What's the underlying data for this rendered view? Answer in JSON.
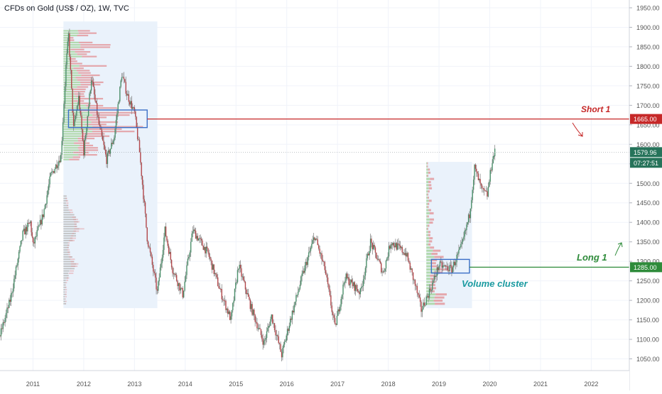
{
  "header": {
    "symbol_title": "CFDs on Gold (US$ / OZ), 1W, TVC"
  },
  "colors": {
    "up": "#4a8f6a",
    "down": "#b3474b",
    "wick": "#8a8a8a",
    "short_line": "#c62828",
    "long_line": "#2e8b3a",
    "price_badge": "#26735a",
    "box_blue": "#3b6fc7",
    "cluster_text": "#1a9aa0",
    "vp_up": "#a8d5a0",
    "vp_down": "#e39a9e",
    "range_bg": "#eaf2fb",
    "gray_vp": "#bdbdbd"
  },
  "annotations": {
    "short_label": "Short 1",
    "long_label": "Long 1",
    "cluster_label": "Volume cluster",
    "short_price": "1665.00",
    "long_price": "1285.00",
    "last_price": "1579.96",
    "countdown": "07:27:51"
  },
  "chart_data": {
    "type": "candlestick",
    "title": "CFDs on Gold (US$ / OZ), 1W, TVC",
    "y_ticks": [
      "1950.00",
      "1900.00",
      "1850.00",
      "1800.00",
      "1750.00",
      "1700.00",
      "1650.00",
      "1600.00",
      "1550.00",
      "1500.00",
      "1450.00",
      "1400.00",
      "1350.00",
      "1300.00",
      "1250.00",
      "1200.00",
      "1150.00",
      "1100.00",
      "1050.00"
    ],
    "x_ticks": [
      "2011",
      "2012",
      "2013",
      "2014",
      "2015",
      "2016",
      "2017",
      "2018",
      "2019",
      "2020",
      "2021",
      "2022"
    ],
    "ylim": [
      1020,
      1970
    ],
    "xlim": [
      2010.35,
      2022.75
    ],
    "price_path": [
      [
        2010.35,
        1110
      ],
      [
        2010.55,
        1200
      ],
      [
        2010.8,
        1370
      ],
      [
        2010.95,
        1400
      ],
      [
        2011.0,
        1340
      ],
      [
        2011.2,
        1420
      ],
      [
        2011.35,
        1520
      ],
      [
        2011.55,
        1570
      ],
      [
        2011.65,
        1800
      ],
      [
        2011.7,
        1880
      ],
      [
        2011.8,
        1640
      ],
      [
        2011.9,
        1720
      ],
      [
        2012.0,
        1580
      ],
      [
        2012.15,
        1770
      ],
      [
        2012.3,
        1650
      ],
      [
        2012.45,
        1560
      ],
      [
        2012.6,
        1620
      ],
      [
        2012.75,
        1780
      ],
      [
        2012.85,
        1730
      ],
      [
        2013.0,
        1680
      ],
      [
        2013.1,
        1580
      ],
      [
        2013.25,
        1360
      ],
      [
        2013.45,
        1220
      ],
      [
        2013.6,
        1380
      ],
      [
        2013.75,
        1280
      ],
      [
        2013.95,
        1215
      ],
      [
        2014.15,
        1380
      ],
      [
        2014.45,
        1320
      ],
      [
        2014.7,
        1220
      ],
      [
        2014.9,
        1150
      ],
      [
        2015.05,
        1290
      ],
      [
        2015.3,
        1180
      ],
      [
        2015.55,
        1090
      ],
      [
        2015.7,
        1160
      ],
      [
        2015.9,
        1060
      ],
      [
        2016.05,
        1140
      ],
      [
        2016.3,
        1260
      ],
      [
        2016.55,
        1365
      ],
      [
        2016.75,
        1280
      ],
      [
        2016.95,
        1130
      ],
      [
        2017.15,
        1260
      ],
      [
        2017.45,
        1220
      ],
      [
        2017.65,
        1350
      ],
      [
        2017.9,
        1270
      ],
      [
        2018.05,
        1350
      ],
      [
        2018.35,
        1320
      ],
      [
        2018.55,
        1230
      ],
      [
        2018.65,
        1175
      ],
      [
        2018.85,
        1235
      ],
      [
        2019.0,
        1290
      ],
      [
        2019.25,
        1280
      ],
      [
        2019.45,
        1340
      ],
      [
        2019.6,
        1420
      ],
      [
        2019.7,
        1540
      ],
      [
        2019.85,
        1480
      ],
      [
        2019.95,
        1470
      ],
      [
        2020.05,
        1560
      ],
      [
        2020.1,
        1580
      ]
    ],
    "annotations": [
      {
        "text": "Short 1",
        "price": 1665
      },
      {
        "text": "Long 1",
        "price": 1285
      },
      {
        "text": "Volume cluster"
      }
    ]
  }
}
